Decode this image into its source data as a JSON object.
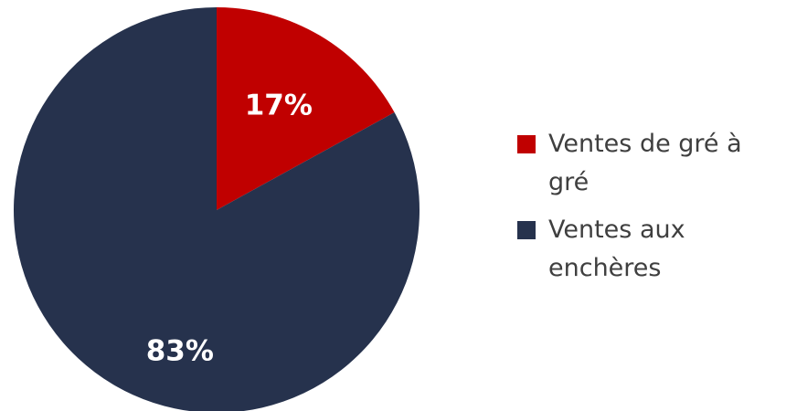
{
  "chart_data": {
    "type": "pie",
    "title": "",
    "categories": [
      "Ventes de gré à gré",
      "Ventes aux enchères"
    ],
    "values": [
      17,
      83
    ],
    "labels": [
      "17%",
      "83%"
    ],
    "colors": [
      "#c00000",
      "#26324d"
    ],
    "legend_position": "right"
  }
}
